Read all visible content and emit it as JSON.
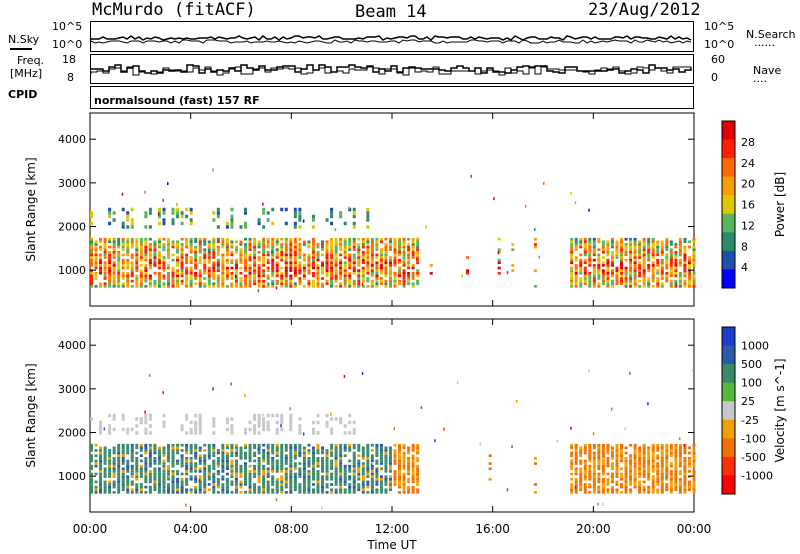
{
  "header": {
    "station": "McMurdo (fitACF)",
    "beam": "Beam 14",
    "date": "23/Aug/2012"
  },
  "side_labels": {
    "nsky": "N.Sky",
    "freq_line1": "Freq.",
    "freq_line2": "[MHz]",
    "cpid": "CPID",
    "nsearch": "N.Search",
    "nave": "Nave",
    "dots": "......",
    "dots_short": "...."
  },
  "panels": {
    "noise_ticks_left": [
      "10^5",
      "10^0"
    ],
    "noise_ticks_right": [
      "10^5",
      "10^0"
    ],
    "freq_ticks_left": [
      "18",
      "8"
    ],
    "freq_ticks_right": [
      "60",
      "0"
    ],
    "cpid_text": "normalsound (fast) 157 RF"
  },
  "colors": {
    "power_scale": [
      "#0000ff",
      "#1f4faa",
      "#2d8a6a",
      "#5ab45a",
      "#e0c800",
      "#f5a000",
      "#ff6a00",
      "#ff2000",
      "#e00000"
    ],
    "velocity_scale": [
      "#1a3cc8",
      "#2a5aa8",
      "#3a8a6a",
      "#58b83c",
      "#c8c8c8",
      "#f0a000",
      "#f07000",
      "#ff3000",
      "#ff0000"
    ]
  },
  "chart_data": [
    {
      "type": "heatmap",
      "title": "",
      "xlabel": "Time UT",
      "ylabel": "Slant Range [km]",
      "x_ticks": [
        "00:00",
        "04:00",
        "08:00",
        "12:00",
        "16:00",
        "20:00",
        "00:00"
      ],
      "y_ticks": [
        "1000",
        "2000",
        "3000",
        "4000"
      ],
      "ylim": [
        180,
        4600
      ],
      "colorbar_label": "Power [dB]",
      "colorbar_ticks": [
        "4",
        "8",
        "12",
        "16",
        "20",
        "24",
        "28"
      ]
    },
    {
      "type": "heatmap",
      "title": "",
      "xlabel": "Time UT",
      "ylabel": "Slant Range [km]",
      "x_ticks": [
        "00:00",
        "04:00",
        "08:00",
        "12:00",
        "16:00",
        "20:00",
        "00:00"
      ],
      "y_ticks": [
        "1000",
        "2000",
        "3000",
        "4000"
      ],
      "ylim": [
        180,
        4600
      ],
      "colorbar_label": "Velocity [m s^-1]",
      "colorbar_ticks": [
        "1000",
        "500",
        "100",
        "25",
        "-25",
        "-100",
        "-500",
        "-1000"
      ]
    }
  ]
}
